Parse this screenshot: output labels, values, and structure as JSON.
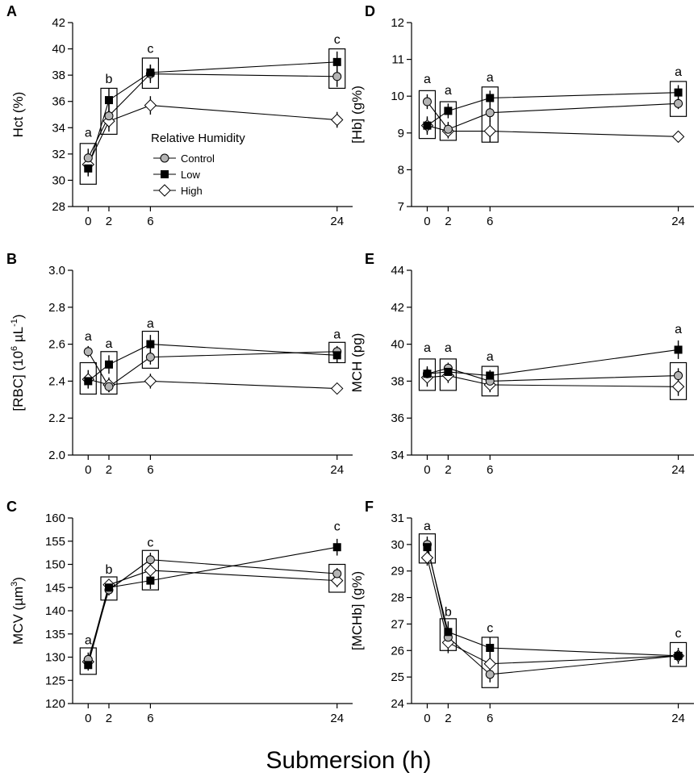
{
  "figure": {
    "x_axis_title": "Submersion (h)",
    "legend": {
      "title": "Relative Humidity",
      "entries": [
        "Control",
        "Low",
        "High"
      ]
    },
    "series_markers": {
      "Control": "circle-open",
      "Low": "square-filled",
      "High": "diamond-open"
    },
    "colors": {
      "line": "#000000",
      "box": "#000000",
      "open_marker_fill": "#ffffff",
      "gray_marker_fill": "#b4b4b4"
    }
  },
  "chart_data": [
    {
      "panel": "A",
      "type": "line",
      "ylabel": "Hct (%)",
      "ylabel_html": "Hct (%)",
      "xlabel": "Submersion (h)",
      "x": [
        0,
        2,
        6,
        24
      ],
      "xlim": [
        -1.5,
        25.5
      ],
      "ylim": [
        28,
        42
      ],
      "yticks": [
        28,
        30,
        32,
        34,
        36,
        38,
        40,
        42
      ],
      "series": [
        {
          "name": "Control",
          "values": [
            31.7,
            34.9,
            38.1,
            37.9
          ],
          "err": [
            0.7,
            0.9,
            0.7,
            0.8
          ]
        },
        {
          "name": "Low",
          "values": [
            30.9,
            36.1,
            38.2,
            39.0
          ],
          "err": [
            0.6,
            0.9,
            0.6,
            0.8
          ]
        },
        {
          "name": "High",
          "values": [
            31.2,
            34.5,
            35.7,
            34.6
          ],
          "err": [
            0.9,
            0.8,
            0.7,
            0.6
          ]
        }
      ],
      "boxes": [
        {
          "x": 0,
          "lo": 29.7,
          "hi": 32.8
        },
        {
          "x": 2,
          "lo": 33.5,
          "hi": 37.0
        },
        {
          "x": 6,
          "lo": 37.0,
          "hi": 39.3
        },
        {
          "x": 24,
          "lo": 37.0,
          "hi": 40.0
        }
      ],
      "letters": [
        {
          "x": 0,
          "text": "a",
          "y": 33.3
        },
        {
          "x": 2,
          "text": "b",
          "y": 37.4
        },
        {
          "x": 6,
          "text": "c",
          "y": 39.7
        },
        {
          "x": 24,
          "text": "c",
          "y": 40.4
        }
      ],
      "legend_shown": true
    },
    {
      "panel": "B",
      "type": "line",
      "ylabel": "[RBC] (10^6 µL^-1)",
      "ylabel_main": "[RBC] (10",
      "ylabel_sup1": "6",
      "ylabel_mid": " µL",
      "ylabel_sup2": "-1",
      "ylabel_end": ")",
      "xlabel": "Submersion (h)",
      "x": [
        0,
        2,
        6,
        24
      ],
      "xlim": [
        -1.5,
        25.5
      ],
      "ylim": [
        2.0,
        3.0
      ],
      "yticks": [
        2.0,
        2.2,
        2.4,
        2.6,
        2.8,
        3.0
      ],
      "series": [
        {
          "name": "Control",
          "values": [
            2.56,
            2.37,
            2.53,
            2.56
          ],
          "err": [
            0.03,
            0.03,
            0.04,
            0.03
          ]
        },
        {
          "name": "Low",
          "values": [
            2.4,
            2.49,
            2.6,
            2.54
          ],
          "err": [
            0.04,
            0.05,
            0.05,
            0.04
          ]
        },
        {
          "name": "High",
          "values": [
            2.41,
            2.38,
            2.4,
            2.36
          ],
          "err": [
            0.05,
            0.04,
            0.04,
            0.03
          ]
        }
      ],
      "boxes": [
        {
          "x": 0,
          "lo": 2.33,
          "hi": 2.5
        },
        {
          "x": 2,
          "lo": 2.33,
          "hi": 2.56
        },
        {
          "x": 6,
          "lo": 2.47,
          "hi": 2.67
        },
        {
          "x": 24,
          "lo": 2.5,
          "hi": 2.61
        }
      ],
      "letters": [
        {
          "x": 0,
          "text": "a",
          "y": 2.62
        },
        {
          "x": 2,
          "text": "a",
          "y": 2.58
        },
        {
          "x": 6,
          "text": "a",
          "y": 2.69
        },
        {
          "x": 24,
          "text": "a",
          "y": 2.63
        }
      ],
      "legend_shown": false
    },
    {
      "panel": "C",
      "type": "line",
      "ylabel": "MCV (µm^3)",
      "ylabel_main": "MCV (µm",
      "ylabel_sup1": "3",
      "ylabel_end": ")",
      "xlabel": "Submersion (h)",
      "x": [
        0,
        2,
        6,
        24
      ],
      "xlim": [
        -1.5,
        25.5
      ],
      "ylim": [
        120,
        160
      ],
      "yticks": [
        120,
        125,
        130,
        135,
        140,
        145,
        150,
        155,
        160
      ],
      "series": [
        {
          "name": "Control",
          "values": [
            129.5,
            144.5,
            151.0,
            148.0
          ],
          "err": [
            1.5,
            1.2,
            1.5,
            1.2
          ]
        },
        {
          "name": "Low",
          "values": [
            128.3,
            145.0,
            146.5,
            153.7
          ],
          "err": [
            1.2,
            1.0,
            1.8,
            1.8
          ]
        },
        {
          "name": "High",
          "values": [
            129.0,
            145.6,
            148.7,
            146.5
          ],
          "err": [
            1.4,
            1.2,
            1.5,
            1.4
          ]
        }
      ],
      "boxes": [
        {
          "x": 0,
          "lo": 126.3,
          "hi": 132.0
        },
        {
          "x": 2,
          "lo": 142.3,
          "hi": 147.3
        },
        {
          "x": 6,
          "lo": 144.5,
          "hi": 153.0
        },
        {
          "x": 24,
          "lo": 144.0,
          "hi": 150.0
        }
      ],
      "letters": [
        {
          "x": 0,
          "text": "a",
          "y": 132.8
        },
        {
          "x": 2,
          "text": "b",
          "y": 148.0
        },
        {
          "x": 6,
          "text": "c",
          "y": 153.8
        },
        {
          "x": 24,
          "text": "c",
          "y": 157.3
        }
      ],
      "legend_shown": false
    },
    {
      "panel": "D",
      "type": "line",
      "ylabel": "[Hb] (g%)",
      "ylabel_html": "[Hb] (g%)",
      "xlabel": "Submersion (h)",
      "x": [
        0,
        2,
        6,
        24
      ],
      "xlim": [
        -1.5,
        25.5
      ],
      "ylim": [
        7,
        12
      ],
      "yticks": [
        7,
        8,
        9,
        10,
        11,
        12
      ],
      "series": [
        {
          "name": "Control",
          "values": [
            9.85,
            9.1,
            9.55,
            9.8
          ],
          "err": [
            0.2,
            0.2,
            0.25,
            0.15
          ]
        },
        {
          "name": "Low",
          "values": [
            9.2,
            9.6,
            9.95,
            10.1
          ],
          "err": [
            0.2,
            0.2,
            0.2,
            0.2
          ]
        },
        {
          "name": "High",
          "values": [
            9.2,
            9.05,
            9.05,
            8.9
          ],
          "err": [
            0.25,
            0.2,
            0.3,
            0.15
          ]
        }
      ],
      "boxes": [
        {
          "x": 0,
          "lo": 8.85,
          "hi": 10.15
        },
        {
          "x": 2,
          "lo": 8.8,
          "hi": 9.85
        },
        {
          "x": 6,
          "lo": 8.75,
          "hi": 10.25
        },
        {
          "x": 24,
          "lo": 9.45,
          "hi": 10.4
        }
      ],
      "letters": [
        {
          "x": 0,
          "text": "a",
          "y": 10.35
        },
        {
          "x": 2,
          "text": "a",
          "y": 10.05
        },
        {
          "x": 6,
          "text": "a",
          "y": 10.4
        },
        {
          "x": 24,
          "text": "a",
          "y": 10.55
        }
      ],
      "legend_shown": false
    },
    {
      "panel": "E",
      "type": "line",
      "ylabel": "MCH (pg)",
      "ylabel_html": "MCH (pg)",
      "xlabel": "Submersion (h)",
      "x": [
        0,
        2,
        6,
        24
      ],
      "xlim": [
        -1.5,
        25.5
      ],
      "ylim": [
        34,
        44
      ],
      "yticks": [
        34,
        36,
        38,
        40,
        42,
        44
      ],
      "series": [
        {
          "name": "Control",
          "values": [
            38.4,
            38.7,
            38.0,
            38.3
          ],
          "err": [
            0.4,
            0.3,
            0.4,
            0.4
          ]
        },
        {
          "name": "Low",
          "values": [
            38.4,
            38.5,
            38.3,
            39.7
          ],
          "err": [
            0.3,
            0.3,
            0.3,
            0.5
          ]
        },
        {
          "name": "High",
          "values": [
            38.2,
            38.3,
            37.8,
            37.7
          ],
          "err": [
            0.5,
            0.4,
            0.4,
            0.5
          ]
        }
      ],
      "boxes": [
        {
          "x": 0,
          "lo": 37.5,
          "hi": 39.2
        },
        {
          "x": 2,
          "lo": 37.5,
          "hi": 39.2
        },
        {
          "x": 6,
          "lo": 37.2,
          "hi": 38.8
        },
        {
          "x": 24,
          "lo": 37.0,
          "hi": 39.0
        }
      ],
      "letters": [
        {
          "x": 0,
          "text": "a",
          "y": 39.6
        },
        {
          "x": 2,
          "text": "a",
          "y": 39.6
        },
        {
          "x": 6,
          "text": "a",
          "y": 39.1
        },
        {
          "x": 24,
          "text": "a",
          "y": 40.6
        }
      ],
      "legend_shown": false
    },
    {
      "panel": "F",
      "type": "line",
      "ylabel": "[MCHb] (g%)",
      "ylabel_html": "[MCHb] (g%)",
      "xlabel": "Submersion (h)",
      "x": [
        0,
        2,
        6,
        24
      ],
      "xlim": [
        -1.5,
        25.5
      ],
      "ylim": [
        24,
        31
      ],
      "yticks": [
        24,
        25,
        26,
        27,
        28,
        29,
        30,
        31
      ],
      "series": [
        {
          "name": "Control",
          "values": [
            30.0,
            26.5,
            25.1,
            25.8
          ],
          "err": [
            0.3,
            0.3,
            0.3,
            0.2
          ]
        },
        {
          "name": "Low",
          "values": [
            29.9,
            26.7,
            26.1,
            25.8
          ],
          "err": [
            0.3,
            0.4,
            0.4,
            0.2
          ]
        },
        {
          "name": "High",
          "values": [
            29.5,
            26.3,
            25.5,
            25.8
          ],
          "err": [
            0.3,
            0.4,
            0.4,
            0.3
          ]
        }
      ],
      "boxes": [
        {
          "x": 0,
          "lo": 29.3,
          "hi": 30.4
        },
        {
          "x": 2,
          "lo": 26.0,
          "hi": 27.2
        },
        {
          "x": 6,
          "lo": 24.6,
          "hi": 26.5
        },
        {
          "x": 24,
          "lo": 25.4,
          "hi": 26.3
        }
      ],
      "letters": [
        {
          "x": 0,
          "text": "a",
          "y": 30.55
        },
        {
          "x": 2,
          "text": "b",
          "y": 27.3
        },
        {
          "x": 6,
          "text": "c",
          "y": 26.7
        },
        {
          "x": 24,
          "text": "c",
          "y": 26.5
        }
      ],
      "legend_shown": false
    }
  ]
}
